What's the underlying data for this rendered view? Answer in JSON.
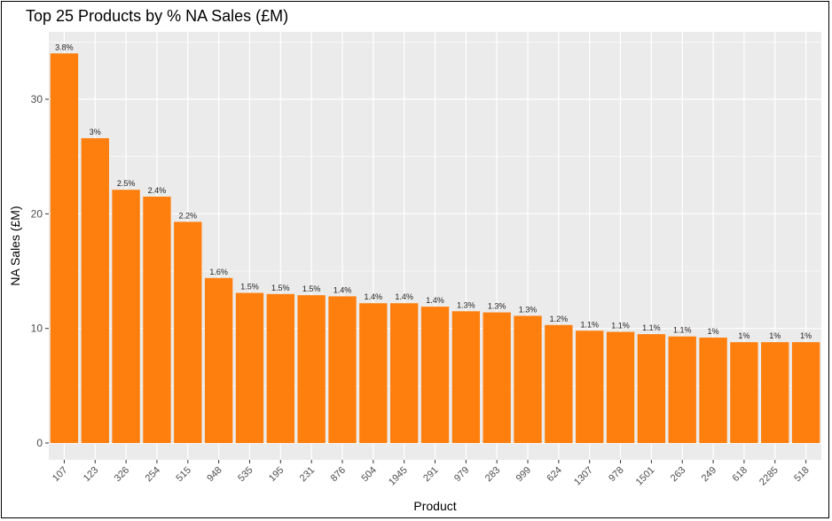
{
  "chart_data": {
    "type": "bar",
    "title": "Top 25 Products by % NA Sales (£M)",
    "xlabel": "Product",
    "ylabel": "NA Sales (£M)",
    "categories": [
      "107",
      "123",
      "326",
      "254",
      "515",
      "948",
      "535",
      "195",
      "231",
      "876",
      "504",
      "1945",
      "291",
      "979",
      "283",
      "999",
      "624",
      "1307",
      "978",
      "1501",
      "263",
      "249",
      "618",
      "2285",
      "518"
    ],
    "values": [
      34.0,
      26.6,
      22.1,
      21.5,
      19.3,
      14.4,
      13.1,
      13.0,
      12.9,
      12.8,
      12.2,
      12.2,
      11.9,
      11.5,
      11.4,
      11.1,
      10.3,
      9.8,
      9.7,
      9.5,
      9.3,
      9.2,
      8.8,
      8.8,
      8.8
    ],
    "labels": [
      "3.8%",
      "3%",
      "2.5%",
      "2.4%",
      "2.2%",
      "1.6%",
      "1.5%",
      "1.5%",
      "1.5%",
      "1.4%",
      "1.4%",
      "1.4%",
      "1.4%",
      "1.3%",
      "1.3%",
      "1.3%",
      "1.2%",
      "1.1%",
      "1.1%",
      "1.1%",
      "1.1%",
      "1%",
      "1%",
      "1%",
      "1%"
    ],
    "ylim": [
      0,
      36
    ],
    "yticks": [
      0,
      10,
      20,
      30
    ],
    "bar_color": "#ff7f0e",
    "panel_color": "#ebebeb",
    "grid_color": "#ffffff"
  }
}
